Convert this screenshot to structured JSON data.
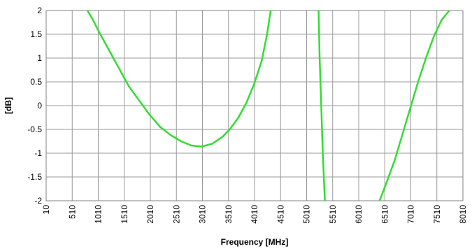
{
  "chart_data": {
    "type": "line",
    "xlabel": "Frequency [MHz]",
    "ylabel": "[dB]",
    "xlim": [
      10,
      8010
    ],
    "ylim": [
      -2,
      2
    ],
    "x_ticks": [
      10,
      510,
      1010,
      1510,
      2010,
      2510,
      3010,
      3510,
      4010,
      4510,
      5010,
      5510,
      6010,
      6510,
      7010,
      7510,
      8010
    ],
    "y_ticks": [
      -2,
      -1.5,
      -1,
      -0.5,
      0,
      0.5,
      1,
      1.5,
      2
    ],
    "grid": true,
    "legend": "none",
    "series_color": "#33dd33",
    "series": [
      {
        "segments": [
          [
            [
              800,
              2.0
            ],
            [
              900,
              1.82
            ],
            [
              1000,
              1.6
            ],
            [
              1150,
              1.3
            ],
            [
              1300,
              1.0
            ],
            [
              1450,
              0.7
            ],
            [
              1600,
              0.4
            ],
            [
              1800,
              0.1
            ],
            [
              2000,
              -0.2
            ],
            [
              2200,
              -0.45
            ],
            [
              2400,
              -0.62
            ],
            [
              2600,
              -0.75
            ],
            [
              2800,
              -0.84
            ],
            [
              3000,
              -0.86
            ],
            [
              3200,
              -0.8
            ],
            [
              3400,
              -0.65
            ],
            [
              3550,
              -0.48
            ],
            [
              3700,
              -0.25
            ],
            [
              3850,
              0.05
            ],
            [
              4000,
              0.45
            ],
            [
              4150,
              0.95
            ],
            [
              4250,
              1.5
            ],
            [
              4320,
              2.0
            ]
          ],
          [
            [
              5240,
              2.0
            ],
            [
              5260,
              1.0
            ],
            [
              5290,
              0.0
            ],
            [
              5320,
              -1.0
            ],
            [
              5360,
              -2.0
            ]
          ],
          [
            [
              6410,
              -2.0
            ],
            [
              6550,
              -1.6
            ],
            [
              6700,
              -1.15
            ],
            [
              6850,
              -0.6
            ],
            [
              7000,
              -0.05
            ],
            [
              7150,
              0.5
            ],
            [
              7300,
              1.0
            ],
            [
              7450,
              1.45
            ],
            [
              7600,
              1.8
            ],
            [
              7750,
              2.0
            ]
          ]
        ]
      }
    ]
  }
}
